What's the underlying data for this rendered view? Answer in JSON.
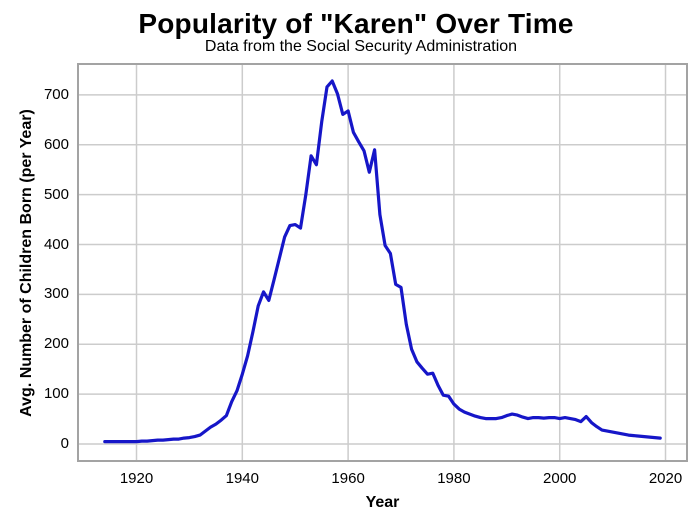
{
  "chart_data": {
    "type": "line",
    "title": "Popularity of \"Karen\" Over Time",
    "subtitle": "Data from the Social Security Administration",
    "xlabel": "Year",
    "ylabel": "Avg. Number of Children Born (per Year)",
    "series_name": "Karen",
    "grid": true,
    "legend_position": "none",
    "xlim": [
      1908.75,
      2024.25
    ],
    "ylim": [
      -36,
      764
    ],
    "xticks": [
      "1920",
      "1940",
      "1960",
      "1980",
      "2000",
      "2020"
    ],
    "xtick_values": [
      1920,
      1940,
      1960,
      1980,
      2000,
      2020
    ],
    "yticks": [
      "0",
      "100",
      "200",
      "300",
      "400",
      "500",
      "600",
      "700"
    ],
    "ytick_values": [
      0,
      100,
      200,
      300,
      400,
      500,
      600,
      700
    ],
    "x": [
      1914,
      1915,
      1916,
      1917,
      1918,
      1919,
      1920,
      1921,
      1922,
      1923,
      1924,
      1925,
      1926,
      1927,
      1928,
      1929,
      1930,
      1931,
      1932,
      1933,
      1934,
      1935,
      1936,
      1937,
      1938,
      1939,
      1940,
      1941,
      1942,
      1943,
      1944,
      1945,
      1946,
      1947,
      1948,
      1949,
      1950,
      1951,
      1952,
      1953,
      1954,
      1955,
      1956,
      1957,
      1958,
      1959,
      1960,
      1961,
      1962,
      1963,
      1964,
      1965,
      1966,
      1967,
      1968,
      1969,
      1970,
      1971,
      1972,
      1973,
      1974,
      1975,
      1976,
      1977,
      1978,
      1979,
      1980,
      1981,
      1982,
      1983,
      1984,
      1985,
      1986,
      1987,
      1988,
      1989,
      1990,
      1991,
      1992,
      1993,
      1994,
      1995,
      1996,
      1997,
      1998,
      1999,
      2000,
      2001,
      2002,
      2003,
      2004,
      2005,
      2006,
      2007,
      2008,
      2009,
      2010,
      2011,
      2012,
      2013,
      2014,
      2015,
      2016,
      2017,
      2018,
      2019
    ],
    "y": [
      5,
      5,
      5,
      5,
      5,
      5,
      5,
      6,
      6,
      7,
      8,
      8,
      9,
      10,
      10,
      12,
      13,
      15,
      18,
      26,
      34,
      40,
      48,
      57,
      85,
      107,
      140,
      177,
      225,
      277,
      305,
      288,
      330,
      372,
      415,
      438,
      440,
      433,
      500,
      578,
      560,
      646,
      716,
      728,
      702,
      661,
      668,
      625,
      606,
      588,
      545,
      590,
      460,
      398,
      382,
      320,
      314,
      240,
      190,
      165,
      152,
      140,
      142,
      118,
      98,
      96,
      80,
      70,
      64,
      60,
      56,
      53,
      51,
      51,
      51,
      53,
      57,
      60,
      58,
      54,
      51,
      53,
      53,
      52,
      53,
      53,
      51,
      53,
      51,
      49,
      45,
      55,
      43,
      35,
      28,
      26,
      24,
      22,
      20,
      18,
      17,
      16,
      15,
      14,
      13,
      12
    ]
  },
  "colors": {
    "line": "#1616c8",
    "grid": "#cccccc",
    "panel_border": "#a3a3a3",
    "text": "#000000",
    "background": "#ffffff"
  }
}
